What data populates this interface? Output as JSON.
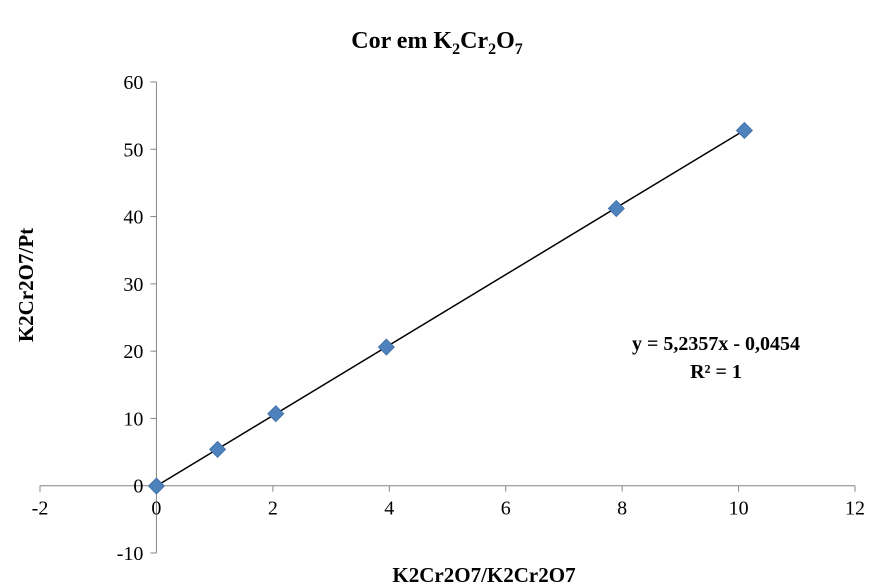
{
  "chart_data": {
    "type": "scatter",
    "title": "Cor em K₂Cr₂O₇",
    "title_parts": {
      "a": "Cor em K",
      "s1": "2",
      "b": "Cr",
      "s2": "2",
      "c": "O",
      "s3": "7"
    },
    "xlabel": "K2Cr2O7/K2Cr2O7",
    "ylabel": "K2Cr2O7/Pt",
    "xlim": [
      -2,
      12
    ],
    "ylim": [
      -10,
      60
    ],
    "x_ticks": [
      -2,
      0,
      2,
      4,
      6,
      8,
      10,
      12
    ],
    "y_ticks": [
      -10,
      0,
      10,
      20,
      30,
      40,
      50,
      60
    ],
    "series": [
      {
        "x": [
          0,
          1.05,
          2.05,
          3.95,
          7.9,
          10.1
        ],
        "y": [
          -0.05,
          5.4,
          10.7,
          20.6,
          41.2,
          52.8
        ],
        "color": "#4f81bd",
        "marker": "diamond"
      }
    ],
    "trendline": {
      "slope": 5.2357,
      "intercept": -0.0454,
      "x_range": [
        0,
        10.1
      ],
      "color": "#000000"
    },
    "annotations": {
      "equation": "y = 5,2357x - 0,0454",
      "r2": "R² = 1"
    },
    "grid": false,
    "legend": "none"
  }
}
